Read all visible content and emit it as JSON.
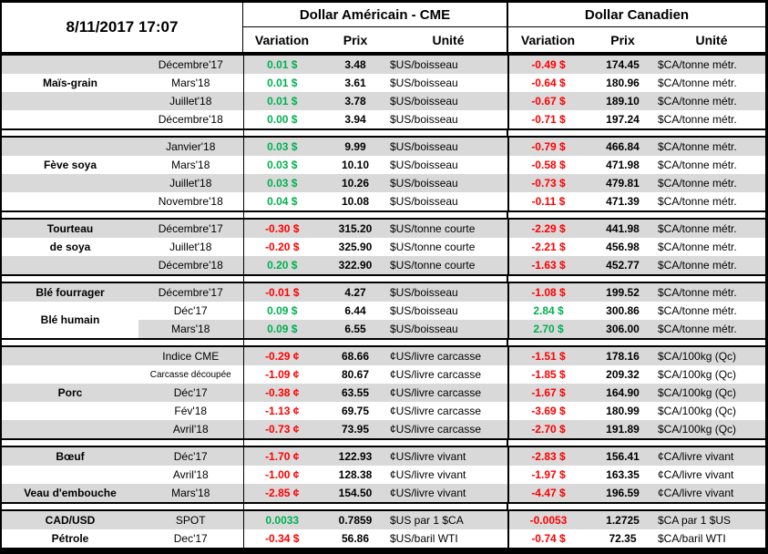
{
  "meta": {
    "timestamp": "8/11/2017 17:07"
  },
  "theme": {
    "positive_green": "#00B050",
    "negative_red": "#FF0000",
    "row_stripe_grey": "#D9D9D9",
    "border_black": "#000000"
  },
  "header": {
    "us_group_title": "Dollar Américain - CME",
    "ca_group_title": "Dollar Canadien",
    "columns": {
      "variation": "Variation",
      "price": "Prix",
      "unit": "Unité"
    }
  },
  "sections": [
    {
      "labels": [
        {
          "text": "Maïs-grain",
          "row": 1
        }
      ],
      "rows": [
        {
          "month": "Décembre'17",
          "us": [
            "0.01 $",
            "3.48",
            "$US/boisseau"
          ],
          "ca": [
            "-0.49 $",
            "174.45",
            "$CA/tonne métr."
          ]
        },
        {
          "month": "Mars'18",
          "us": [
            "0.01 $",
            "3.61",
            "$US/boisseau"
          ],
          "ca": [
            "-0.64 $",
            "180.96",
            "$CA/tonne métr."
          ]
        },
        {
          "month": "Juillet'18",
          "us": [
            "0.01 $",
            "3.78",
            "$US/boisseau"
          ],
          "ca": [
            "-0.67 $",
            "189.10",
            "$CA/tonne métr."
          ]
        },
        {
          "month": "Décembre'18",
          "us": [
            "0.00 $",
            "3.94",
            "$US/boisseau"
          ],
          "ca": [
            "-0.71 $",
            "197.24",
            "$CA/tonne métr."
          ]
        }
      ]
    },
    {
      "labels": [
        {
          "text": "Fève soya",
          "row": 1
        }
      ],
      "rows": [
        {
          "month": "Janvier'18",
          "us": [
            "0.03 $",
            "9.99",
            "$US/boisseau"
          ],
          "ca": [
            "-0.79 $",
            "466.84",
            "$CA/tonne métr."
          ]
        },
        {
          "month": "Mars'18",
          "us": [
            "0.03 $",
            "10.10",
            "$US/boisseau"
          ],
          "ca": [
            "-0.58 $",
            "471.98",
            "$CA/tonne métr."
          ]
        },
        {
          "month": "Juillet'18",
          "us": [
            "0.03 $",
            "10.26",
            "$US/boisseau"
          ],
          "ca": [
            "-0.73 $",
            "479.81",
            "$CA/tonne métr."
          ]
        },
        {
          "month": "Novembre'18",
          "us": [
            "0.04 $",
            "10.08",
            "$US/boisseau"
          ],
          "ca": [
            "-0.11 $",
            "471.39",
            "$CA/tonne métr."
          ]
        }
      ]
    },
    {
      "labels": [
        {
          "text": "Tourteau",
          "row": 0
        },
        {
          "text": "de soya",
          "row": 1
        }
      ],
      "rows": [
        {
          "month": "Décembre'17",
          "us": [
            "-0.30 $",
            "315.20",
            "$US/tonne courte"
          ],
          "ca": [
            "-2.29 $",
            "441.98",
            "$CA/tonne métr."
          ]
        },
        {
          "month": "Juillet'18",
          "us": [
            "-0.20 $",
            "325.90",
            "$US/tonne courte"
          ],
          "ca": [
            "-2.21 $",
            "456.98",
            "$CA/tonne métr."
          ]
        },
        {
          "month": "Décembre'18",
          "us": [
            "0.20 $",
            "322.90",
            "$US/tonne courte"
          ],
          "ca": [
            "-1.63 $",
            "452.77",
            "$CA/tonne métr."
          ]
        }
      ]
    },
    {
      "labels": [
        {
          "text": "Blé fourrager",
          "row": 0
        },
        {
          "text": "Blé humain",
          "row": 1,
          "span": 2
        }
      ],
      "rows": [
        {
          "month": "Décembre'17",
          "us": [
            "-0.01 $",
            "4.27",
            "$US/boisseau"
          ],
          "ca": [
            "-1.08 $",
            "199.52",
            "$CA/tonne métr."
          ]
        },
        {
          "month": "Déc'17",
          "us": [
            "0.09 $",
            "6.44",
            "$US/boisseau"
          ],
          "ca": [
            "2.84 $",
            "300.86",
            "$CA/tonne métr."
          ]
        },
        {
          "month": "Mars'18",
          "us": [
            "0.09 $",
            "6.55",
            "$US/boisseau"
          ],
          "ca": [
            "2.70 $",
            "306.00",
            "$CA/tonne métr."
          ]
        }
      ]
    },
    {
      "labels": [
        {
          "text": "Porc",
          "row": 2
        }
      ],
      "rows": [
        {
          "month": "Indice CME",
          "us": [
            "-0.29 ¢",
            "68.66",
            "¢US/livre carcasse"
          ],
          "ca": [
            "-1.51 $",
            "178.16",
            "$CA/100kg (Qc)"
          ]
        },
        {
          "month": "Carcasse découpée",
          "small": true,
          "us": [
            "-1.09 ¢",
            "80.67",
            "¢US/livre carcasse"
          ],
          "ca": [
            "-1.85 $",
            "209.32",
            "$CA/100kg (Qc)"
          ]
        },
        {
          "month": "Déc'17",
          "us": [
            "-0.38 ¢",
            "63.55",
            "¢US/livre carcasse"
          ],
          "ca": [
            "-1.67 $",
            "164.90",
            "$CA/100kg (Qc)"
          ]
        },
        {
          "month": "Fév'18",
          "us": [
            "-1.13 ¢",
            "69.75",
            "¢US/livre carcasse"
          ],
          "ca": [
            "-3.69 $",
            "180.99",
            "$CA/100kg (Qc)"
          ]
        },
        {
          "month": "Avril'18",
          "us": [
            "-0.73 ¢",
            "73.95",
            "¢US/livre carcasse"
          ],
          "ca": [
            "-2.70 $",
            "191.89",
            "$CA/100kg (Qc)"
          ]
        }
      ]
    },
    {
      "labels": [
        {
          "text": "Bœuf",
          "row": 0
        },
        {
          "text": "Veau d'embouche",
          "row": 2
        }
      ],
      "rows": [
        {
          "month": "Déc'17",
          "us": [
            "-1.70 ¢",
            "122.93",
            "¢US/livre vivant"
          ],
          "ca": [
            "-2.83 $",
            "156.41",
            "¢CA/livre vivant"
          ]
        },
        {
          "month": "Avril'18",
          "us": [
            "-1.00 ¢",
            "128.38",
            "¢US/livre vivant"
          ],
          "ca": [
            "-1.97 $",
            "163.35",
            "¢CA/livre vivant"
          ]
        },
        {
          "month": "Mars'18",
          "us": [
            "-2.85 ¢",
            "154.50",
            "¢US/livre vivant"
          ],
          "ca": [
            "-4.47 $",
            "196.59",
            "¢CA/livre vivant"
          ]
        }
      ]
    },
    {
      "labels": [
        {
          "text": "CAD/USD",
          "row": 0
        },
        {
          "text": "Pétrole",
          "row": 1
        }
      ],
      "rows": [
        {
          "month": "SPOT",
          "us": [
            "0.0033",
            "0.7859",
            "$US par 1 $CA"
          ],
          "ca": [
            "-0.0053",
            "1.2725",
            "$CA par 1 $US"
          ]
        },
        {
          "month": "Dec'17",
          "us": [
            "-0.34 $",
            "56.86",
            "$US/baril WTI"
          ],
          "ca": [
            "-0.74 $",
            "72.35",
            "$CA/baril WTI"
          ]
        }
      ]
    }
  ]
}
